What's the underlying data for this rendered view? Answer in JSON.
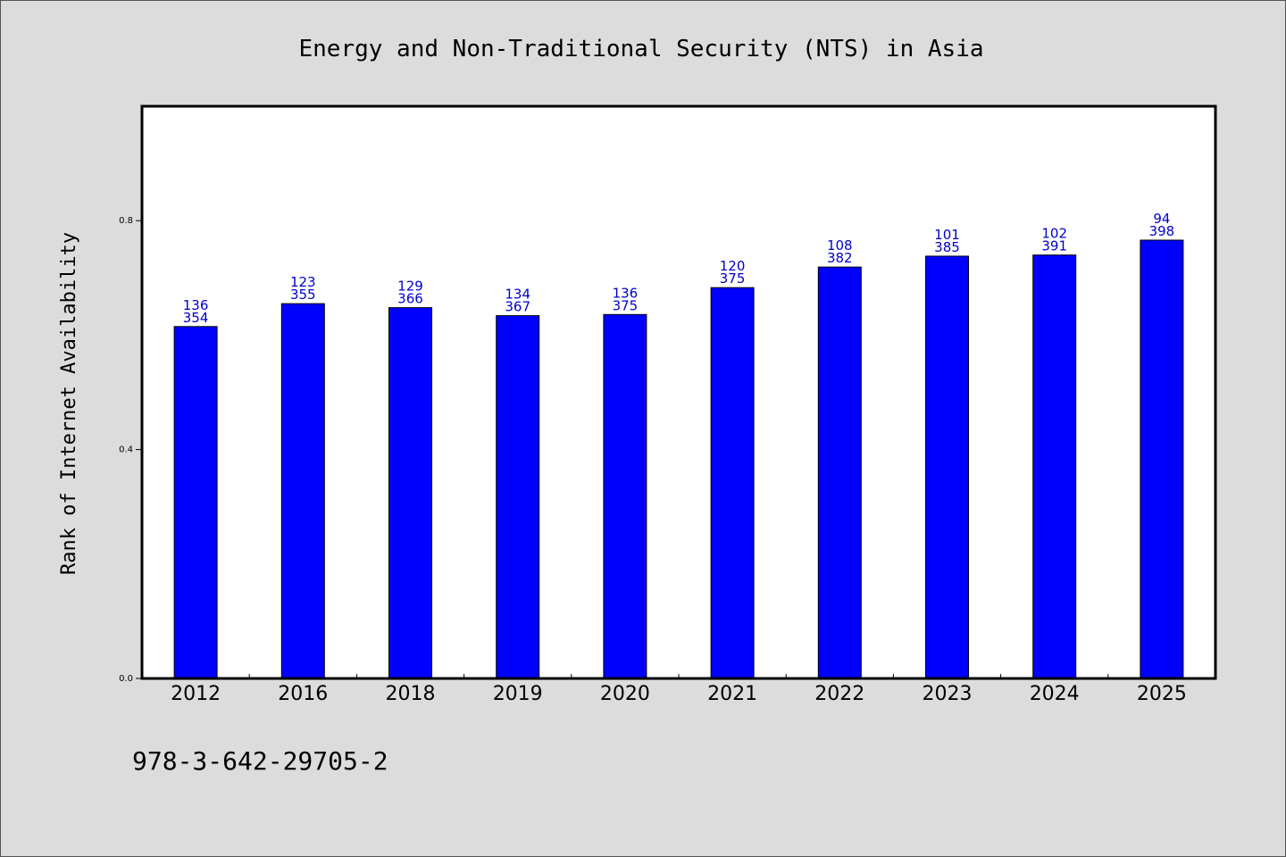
{
  "chart_data": {
    "type": "bar",
    "title": "Energy and Non-Traditional Security (NTS) in Asia",
    "xlabel": "",
    "ylabel": "Rank of Internet Availability",
    "categories": [
      "2012",
      "2016",
      "2018",
      "2019",
      "2020",
      "2021",
      "2022",
      "2023",
      "2024",
      "2025"
    ],
    "values": [
      0.615,
      0.655,
      0.648,
      0.634,
      0.636,
      0.683,
      0.719,
      0.738,
      0.74,
      0.766
    ],
    "labels_top": [
      "136",
      "123",
      "129",
      "134",
      "136",
      "120",
      "108",
      "101",
      "102",
      "94"
    ],
    "labels_bottom": [
      "354",
      "355",
      "366",
      "367",
      "375",
      "375",
      "382",
      "385",
      "391",
      "398"
    ],
    "ylim": [
      0,
      1.0
    ],
    "yticks": [
      0.0,
      0.4,
      0.8
    ],
    "ytick_labels": [
      "0.0",
      "0.4",
      "0.8"
    ],
    "grid": false,
    "bar_color": "#0000ff",
    "label_color": "#0000cc"
  },
  "footer": {
    "isbn": "978-3-642-29705-2"
  }
}
